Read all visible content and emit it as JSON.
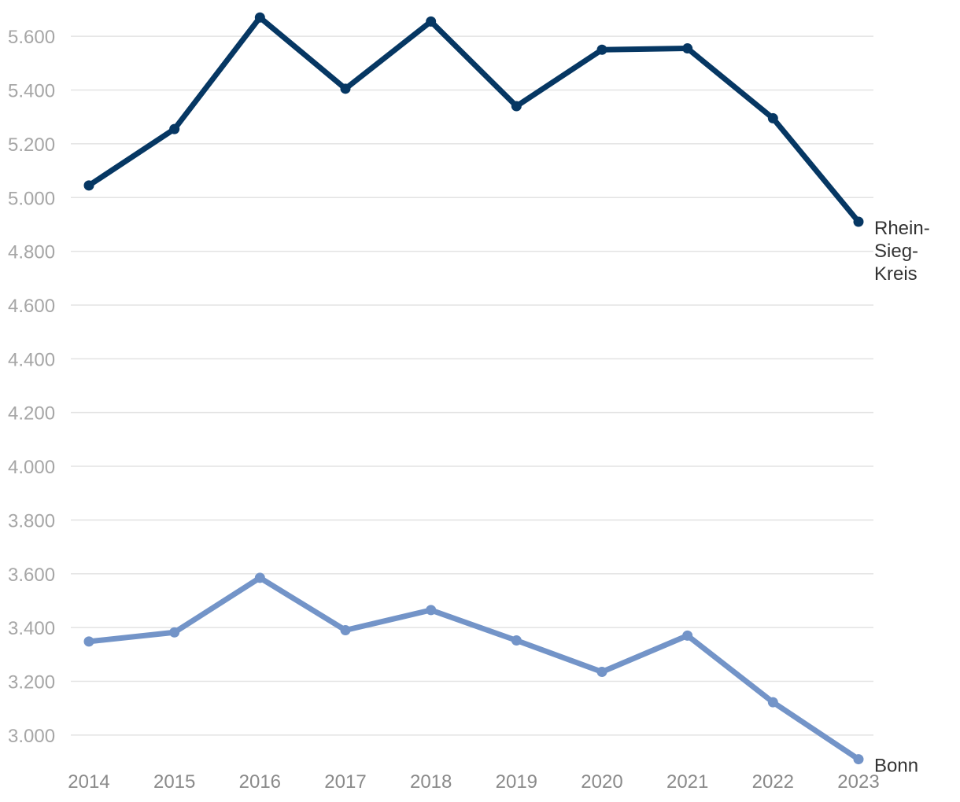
{
  "chart_data": {
    "type": "line",
    "title": "",
    "xlabel": "",
    "ylabel": "",
    "x": [
      "2014",
      "2015",
      "2016",
      "2017",
      "2018",
      "2019",
      "2020",
      "2021",
      "2022",
      "2023"
    ],
    "ylim": [
      2900,
      5700
    ],
    "yticks": [
      3000,
      3200,
      3400,
      3600,
      3800,
      4000,
      4200,
      4400,
      4600,
      4800,
      5000,
      5200,
      5400,
      5600
    ],
    "ytick_labels": [
      "3.000",
      "3.200",
      "3.400",
      "3.600",
      "3.800",
      "4.000",
      "4.200",
      "4.400",
      "4.600",
      "4.800",
      "5.000",
      "5.200",
      "5.400",
      "5.600"
    ],
    "grid": true,
    "legend": "none",
    "series": [
      {
        "name": "Rhein-Sieg-Kreis",
        "label_lines": [
          "Rhein-",
          "Sieg-",
          "Kreis"
        ],
        "color": "#063763",
        "values": [
          5045,
          5255,
          5670,
          5405,
          5655,
          5340,
          5550,
          5555,
          5295,
          4910
        ]
      },
      {
        "name": "Bonn",
        "label_lines": [
          "Bonn"
        ],
        "color": "#7394c8",
        "values": [
          3348,
          3382,
          3585,
          3390,
          3465,
          3352,
          3235,
          3370,
          3122,
          2910
        ]
      }
    ]
  }
}
